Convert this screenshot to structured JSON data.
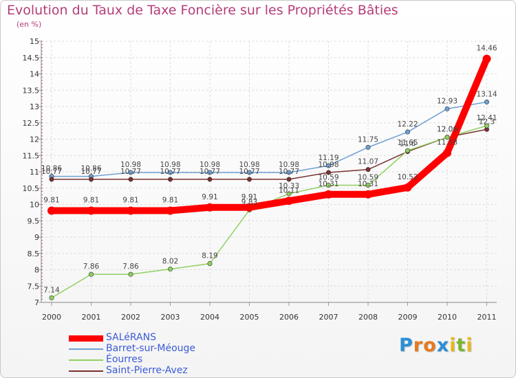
{
  "title": "Evolution du Taux de Taxe Foncière sur les Propriétés Bâties",
  "unit": "(en %)",
  "logo": {
    "letters": [
      "P",
      "r",
      "o",
      "x",
      "i",
      "t",
      "i"
    ],
    "colors": [
      "#2a8fd6",
      "#e8791e",
      "#e8791e",
      "#2a8fd6",
      "#e6b81e",
      "#7ab632",
      "#e6b81e"
    ]
  },
  "chart_data": {
    "type": "line",
    "title": "Evolution du Taux de Taxe Foncière sur les Propriétés Bâties",
    "ylabel": "(en %)",
    "xlabel": "",
    "x": [
      "2000",
      "2001",
      "2002",
      "2003",
      "2004",
      "2005",
      "2006",
      "2007",
      "2008",
      "2009",
      "2010",
      "2011"
    ],
    "ylim": [
      7,
      15
    ],
    "yticks": [
      "7",
      "7.5",
      "8",
      "8.5",
      "9",
      "9.5",
      "10",
      "10.5",
      "11",
      "11.5",
      "12",
      "12.5",
      "13",
      "13.5",
      "14",
      "14.5",
      "15"
    ],
    "grid": true,
    "legend_position": "bottom-left",
    "series": [
      {
        "name": "SALéRANS",
        "color": "#ff0000",
        "values": [
          9.81,
          9.81,
          9.81,
          9.81,
          9.91,
          9.91,
          10.11,
          10.31,
          10.31,
          10.52,
          11.58,
          14.46
        ],
        "labels": [
          "9.81",
          "9.81",
          "9.81",
          "9.81",
          "9.91",
          "9.91",
          "10.11",
          "10.31",
          "10.31",
          "10.52",
          "11.58",
          "14.46"
        ]
      },
      {
        "name": "Barret-sur-Méouge",
        "color": "#6ea0d2",
        "values": [
          10.86,
          10.86,
          10.98,
          10.98,
          10.98,
          10.98,
          10.98,
          11.19,
          11.75,
          12.22,
          12.93,
          13.14
        ],
        "labels": [
          "10.86",
          "10.86",
          "10.98",
          "10.98",
          "10.98",
          "10.98",
          "10.98",
          "11.19",
          "11.75",
          "12.22",
          "12.93",
          "13.14"
        ]
      },
      {
        "name": "Éourres",
        "color": "#90d060",
        "values": [
          7.14,
          7.86,
          7.86,
          8.02,
          8.19,
          9.83,
          10.33,
          10.59,
          10.59,
          11.65,
          12.06,
          12.41
        ],
        "labels": [
          "7.14",
          "7.86",
          "7.86",
          "8.02",
          "8.19",
          "9.83",
          "10.33",
          "10.59",
          "10.59",
          "11.65",
          "12.06",
          "12.41"
        ]
      },
      {
        "name": "Saint-Pierre-Avez",
        "color": "#7a3030",
        "values": [
          10.77,
          10.77,
          10.77,
          10.77,
          10.77,
          10.77,
          10.77,
          10.98,
          11.07,
          11.62,
          12.06,
          12.3
        ],
        "labels": [
          "10.77",
          "10.77",
          "10.77",
          "10.77",
          "10.77",
          "10.77",
          "10.77",
          "10.98",
          "11.07",
          "11.6",
          "12.06",
          "12.3"
        ]
      }
    ]
  }
}
